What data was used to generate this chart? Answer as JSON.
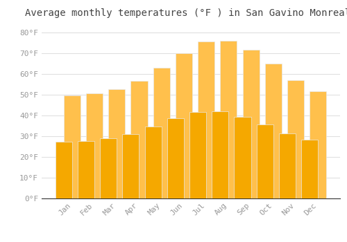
{
  "title": "Average monthly temperatures (°F ) in San Gavino Monreale",
  "months": [
    "Jan",
    "Feb",
    "Mar",
    "Apr",
    "May",
    "Jun",
    "Jul",
    "Aug",
    "Sep",
    "Oct",
    "Nov",
    "Dec"
  ],
  "values": [
    49.5,
    50.5,
    52.5,
    56.5,
    63,
    70,
    75.5,
    76,
    71.5,
    65,
    57,
    51.5
  ],
  "bar_color_top": "#FFC04C",
  "bar_color_bottom": "#F5A800",
  "bar_edge_color": "#E8E8E8",
  "background_color": "#FFFFFF",
  "grid_color": "#E0E0E0",
  "text_color": "#999999",
  "title_color": "#444444",
  "ylim": [
    0,
    85
  ],
  "yticks": [
    0,
    10,
    20,
    30,
    40,
    50,
    60,
    70,
    80
  ],
  "ytick_labels": [
    "0°F",
    "10°F",
    "20°F",
    "30°F",
    "40°F",
    "50°F",
    "60°F",
    "70°F",
    "80°F"
  ],
  "title_fontsize": 10,
  "tick_fontsize": 8,
  "font_family": "monospace"
}
